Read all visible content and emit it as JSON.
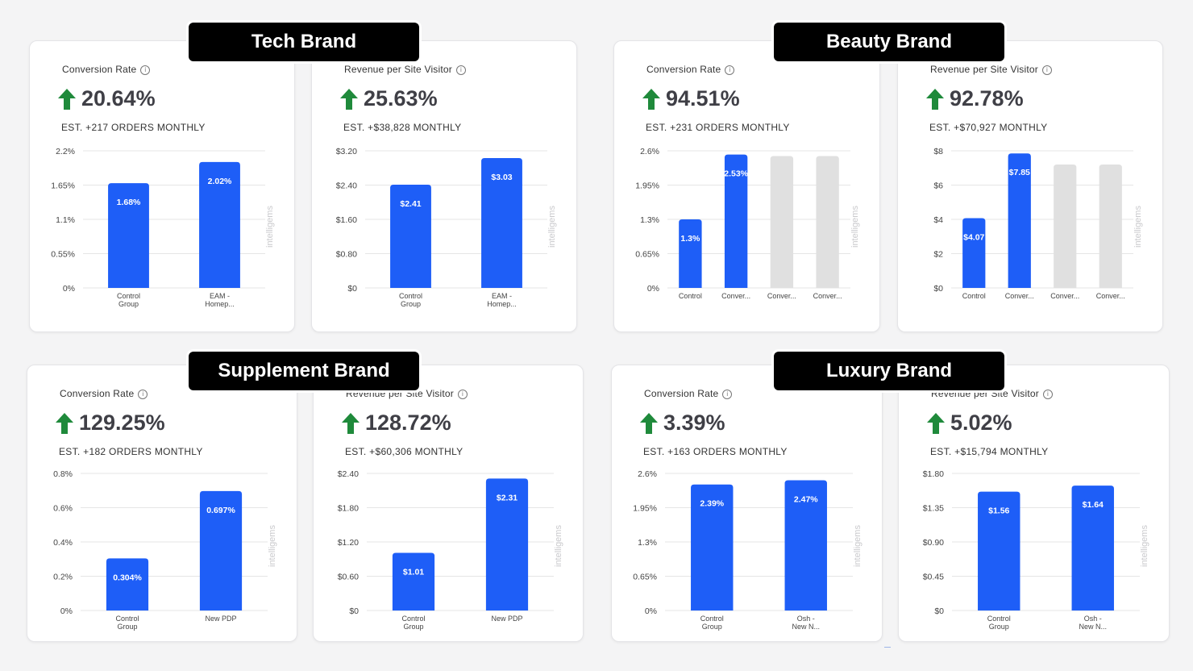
{
  "brands": [
    {
      "name": "Tech Brand"
    },
    {
      "name": "Beauty Brand"
    },
    {
      "name": "Supplement Brand"
    },
    {
      "name": "Luxury Brand"
    }
  ],
  "watermark": "intelligems",
  "colors": {
    "bar": "#1e5ef7",
    "bar_inactive": "#e0e0e0",
    "arrow": "#1f8a3b",
    "grid": "#e5e5e5"
  },
  "cards": [
    {
      "title": "Conversion Rate",
      "value": "20.64%",
      "estimate": "EST. +217 ORDERS MONTHLY"
    },
    {
      "title": "Revenue per Site Visitor",
      "value": "25.63%",
      "estimate": "EST. +$38,828 MONTHLY"
    },
    {
      "title": "Conversion Rate",
      "value": "94.51%",
      "estimate": "EST. +231 ORDERS MONTHLY"
    },
    {
      "title": "Revenue per Site Visitor",
      "value": "92.78%",
      "estimate": "EST. +$70,927 MONTHLY"
    },
    {
      "title": "Conversion Rate",
      "value": "129.25%",
      "estimate": "EST. +182 ORDERS MONTHLY"
    },
    {
      "title": "Revenue per Site Visitor",
      "value": "128.72%",
      "estimate": "EST. +$60,306 MONTHLY"
    },
    {
      "title": "Conversion Rate",
      "value": "3.39%",
      "estimate": "EST. +163 ORDERS MONTHLY"
    },
    {
      "title": "Revenue per Site Visitor",
      "value": "5.02%",
      "estimate": "EST. +$15,794 MONTHLY"
    }
  ],
  "chart_data": [
    {
      "type": "bar",
      "ylim": [
        0,
        2.2
      ],
      "yticks": [
        "0%",
        "0.55%",
        "1.1%",
        "1.65%",
        "2.2%"
      ],
      "categories": [
        "Control\nGroup",
        "EAM -\nHomep..."
      ],
      "values": [
        1.68,
        2.02
      ],
      "data_labels": [
        "1.68%",
        "2.02%"
      ],
      "active": [
        true,
        true
      ]
    },
    {
      "type": "bar",
      "ylim": [
        0,
        3.2
      ],
      "yticks": [
        "$0",
        "$0.80",
        "$1.60",
        "$2.40",
        "$3.20"
      ],
      "categories": [
        "Control\nGroup",
        "EAM -\nHomep..."
      ],
      "values": [
        2.41,
        3.03
      ],
      "data_labels": [
        "$2.41",
        "$3.03"
      ],
      "active": [
        true,
        true
      ]
    },
    {
      "type": "bar",
      "ylim": [
        0,
        2.6
      ],
      "yticks": [
        "0%",
        "0.65%",
        "1.3%",
        "1.95%",
        "2.6%"
      ],
      "categories": [
        "Control",
        "Conver...",
        "Conver...",
        "Conver..."
      ],
      "values": [
        1.3,
        2.53,
        2.5,
        2.5
      ],
      "data_labels": [
        "1.3%",
        "2.53%",
        "",
        ""
      ],
      "active": [
        true,
        true,
        false,
        false
      ]
    },
    {
      "type": "bar",
      "ylim": [
        0,
        8
      ],
      "yticks": [
        "$0",
        "$2",
        "$4",
        "$6",
        "$8"
      ],
      "categories": [
        "Control",
        "Conver...",
        "Conver...",
        "Conver..."
      ],
      "values": [
        4.07,
        7.85,
        7.2,
        7.2
      ],
      "data_labels": [
        "$4.07",
        "$7.85",
        "",
        ""
      ],
      "active": [
        true,
        true,
        false,
        false
      ]
    },
    {
      "type": "bar",
      "ylim": [
        0,
        0.8
      ],
      "yticks": [
        "0%",
        "0.2%",
        "0.4%",
        "0.6%",
        "0.8%"
      ],
      "categories": [
        "Control\nGroup",
        "New PDP"
      ],
      "values": [
        0.304,
        0.697
      ],
      "data_labels": [
        "0.304%",
        "0.697%"
      ],
      "active": [
        true,
        true
      ]
    },
    {
      "type": "bar",
      "ylim": [
        0,
        2.4
      ],
      "yticks": [
        "$0",
        "$0.60",
        "$1.20",
        "$1.80",
        "$2.40"
      ],
      "categories": [
        "Control\nGroup",
        "New PDP"
      ],
      "values": [
        1.01,
        2.31
      ],
      "data_labels": [
        "$1.01",
        "$2.31"
      ],
      "active": [
        true,
        true
      ]
    },
    {
      "type": "bar",
      "ylim": [
        0,
        2.6
      ],
      "yticks": [
        "0%",
        "0.65%",
        "1.3%",
        "1.95%",
        "2.6%"
      ],
      "categories": [
        "Control\nGroup",
        "Osh -\nNew N..."
      ],
      "values": [
        2.39,
        2.47
      ],
      "data_labels": [
        "2.39%",
        "2.47%"
      ],
      "active": [
        true,
        true
      ]
    },
    {
      "type": "bar",
      "ylim": [
        0,
        1.8
      ],
      "yticks": [
        "$0",
        "$0.45",
        "$0.90",
        "$1.35",
        "$1.80"
      ],
      "categories": [
        "Control\nGroup",
        "Osh -\nNew N..."
      ],
      "values": [
        1.56,
        1.64
      ],
      "data_labels": [
        "$1.56",
        "$1.64"
      ],
      "active": [
        true,
        true
      ]
    }
  ]
}
